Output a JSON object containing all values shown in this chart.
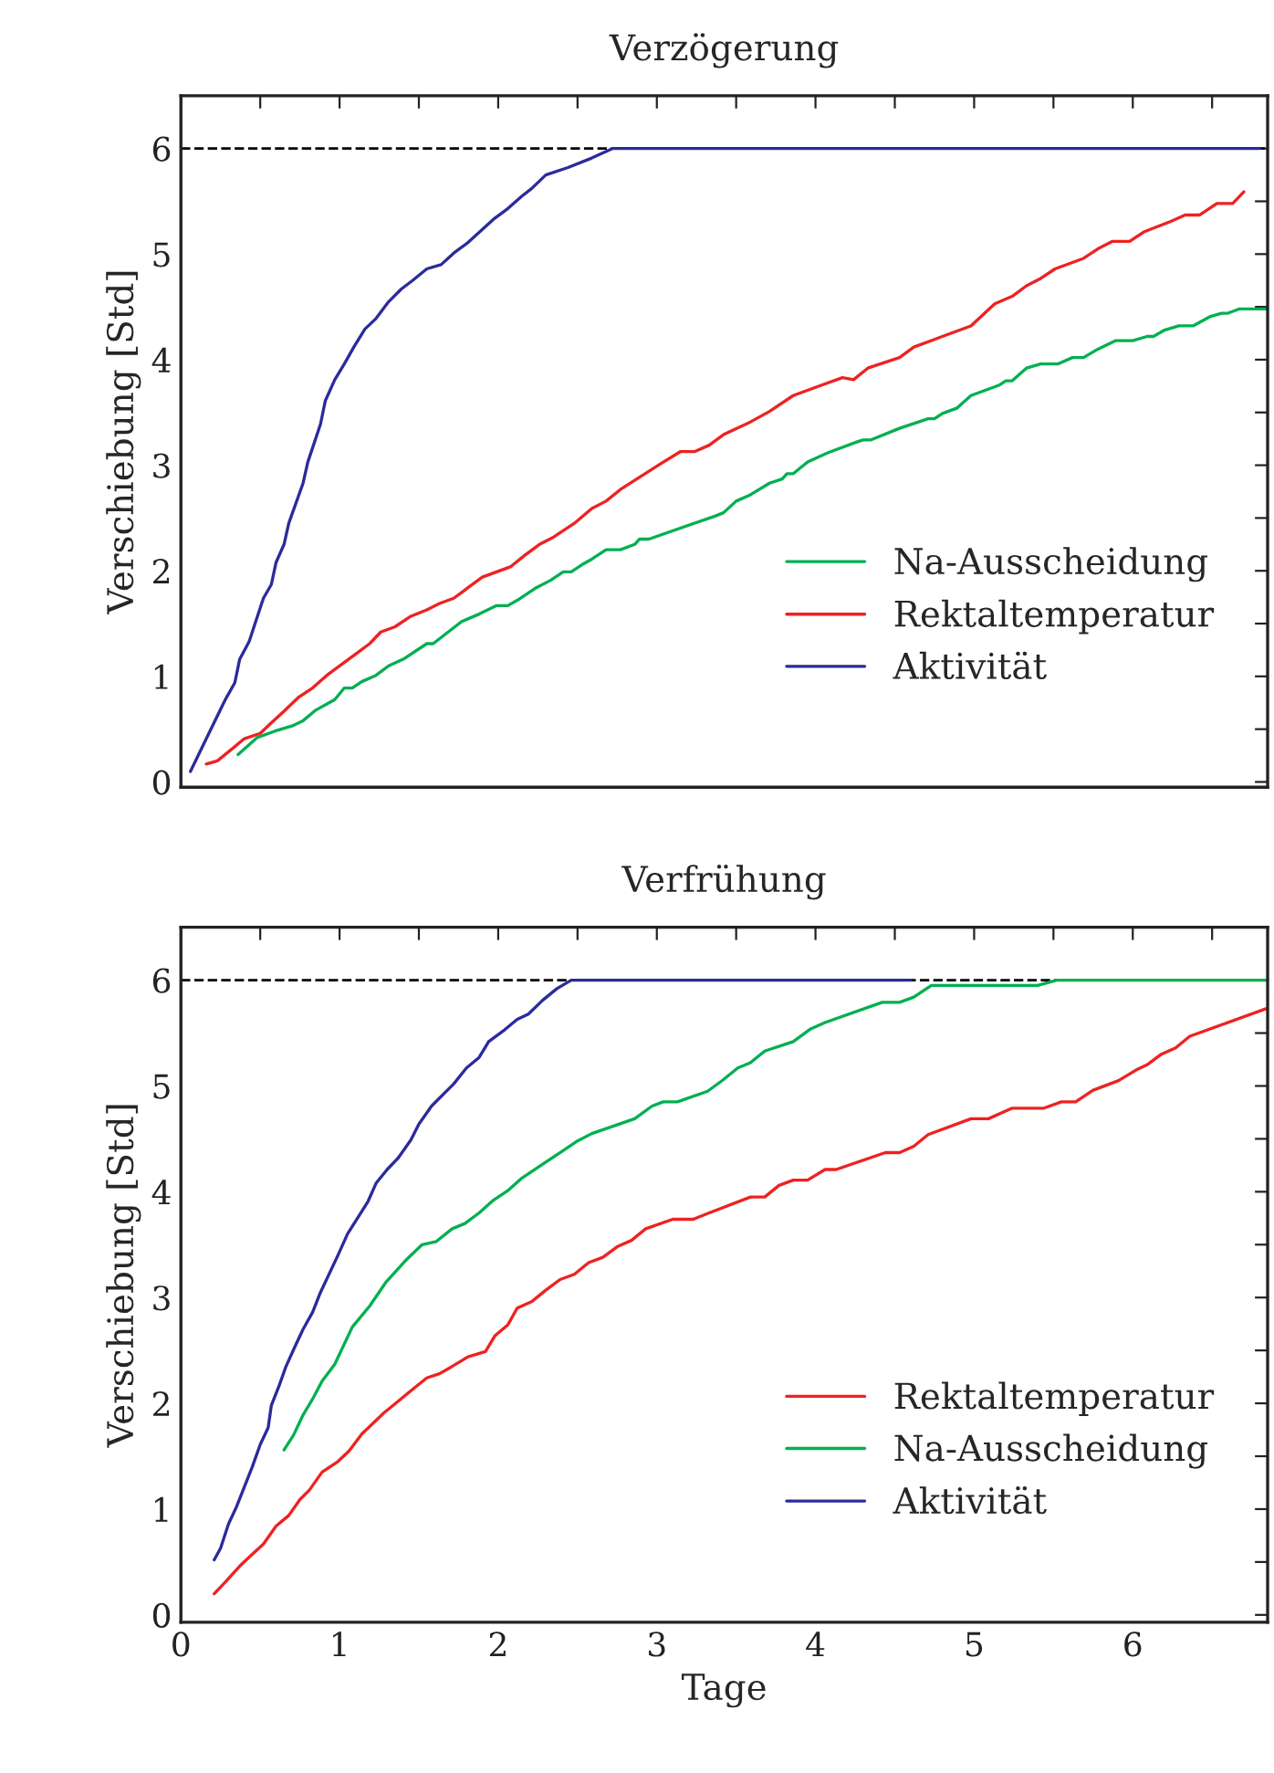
{
  "chart_data": [
    {
      "type": "line",
      "title": "Verzögerung",
      "ylabel": "Verschiebung [Std]",
      "xlim": [
        0,
        6.85
      ],
      "ylim": [
        -0.05,
        6.5
      ],
      "xticks": [
        {
          "value": 0,
          "label": null
        },
        {
          "value": 0.5,
          "label": null
        },
        {
          "value": 1,
          "label": null
        },
        {
          "value": 1.5,
          "label": null
        },
        {
          "value": 2,
          "label": null
        },
        {
          "value": 2.5,
          "label": null
        },
        {
          "value": 3,
          "label": null
        },
        {
          "value": 3.5,
          "label": null
        },
        {
          "value": 4,
          "label": null
        },
        {
          "value": 4.5,
          "label": null
        },
        {
          "value": 5,
          "label": null
        },
        {
          "value": 5.5,
          "label": null
        },
        {
          "value": 6,
          "label": null
        },
        {
          "value": 6.5,
          "label": null
        }
      ],
      "yticks": [
        0,
        {
          "value": 0.5,
          "label": null
        },
        1,
        {
          "value": 1.5,
          "label": null
        },
        2,
        {
          "value": 2.5,
          "label": null
        },
        3,
        {
          "value": 3.5,
          "label": null
        },
        4,
        {
          "value": 4.5,
          "label": null
        },
        5,
        {
          "value": 5.5,
          "label": null
        },
        6
      ],
      "tick_labels": "y",
      "grid": false,
      "legend": "bottom right",
      "line_style": "solid",
      "marker": "none",
      "ref_lines": [
        {
          "axis": "y",
          "value": 6,
          "color": "#000000",
          "line_style": "dashed"
        }
      ],
      "series": [
        {
          "name": "Na-Ausscheidung",
          "color": "#00b050",
          "x": [
            0.36,
            0.48,
            0.59,
            0.7,
            0.77,
            0.85,
            0.97,
            1.03,
            1.08,
            1.14,
            1.23,
            1.31,
            1.41,
            1.55,
            1.59,
            1.77,
            1.88,
            1.99,
            2.06,
            2.12,
            2.24,
            2.33,
            2.41,
            2.46,
            2.53,
            2.59,
            2.68,
            2.77,
            2.86,
            2.89,
            2.95,
            3.37,
            3.42,
            3.5,
            3.59,
            3.71,
            3.79,
            3.82,
            3.86,
            3.95,
            4.08,
            4.26,
            4.3,
            4.35,
            4.53,
            4.71,
            4.75,
            4.8,
            4.89,
            4.98,
            5.16,
            5.2,
            5.24,
            5.33,
            5.42,
            5.53,
            5.62,
            5.69,
            5.78,
            5.89,
            6.0,
            6.09,
            6.13,
            6.2,
            6.29,
            6.38,
            6.49,
            6.56,
            6.6,
            6.67,
            6.85
          ],
          "values": [
            0.26,
            0.42,
            0.48,
            0.53,
            0.58,
            0.68,
            0.78,
            0.89,
            0.89,
            0.95,
            1.01,
            1.1,
            1.17,
            1.31,
            1.31,
            1.52,
            1.59,
            1.67,
            1.67,
            1.72,
            1.84,
            1.91,
            1.99,
            1.99,
            2.06,
            2.11,
            2.2,
            2.2,
            2.25,
            2.3,
            2.3,
            2.52,
            2.55,
            2.66,
            2.72,
            2.83,
            2.87,
            2.92,
            2.92,
            3.03,
            3.12,
            3.22,
            3.24,
            3.24,
            3.35,
            3.44,
            3.44,
            3.49,
            3.54,
            3.66,
            3.76,
            3.8,
            3.8,
            3.92,
            3.96,
            3.96,
            4.02,
            4.02,
            4.1,
            4.18,
            4.18,
            4.22,
            4.22,
            4.28,
            4.32,
            4.32,
            4.41,
            4.44,
            4.44,
            4.48,
            4.48
          ]
        },
        {
          "name": "Rektaltemperatur",
          "color": "#ee2222",
          "x": [
            0.16,
            0.23,
            0.32,
            0.4,
            0.5,
            0.57,
            0.65,
            0.74,
            0.83,
            0.92,
            1.01,
            1.1,
            1.19,
            1.26,
            1.35,
            1.45,
            1.55,
            1.63,
            1.72,
            1.81,
            1.9,
            2.08,
            2.17,
            2.26,
            2.35,
            2.48,
            2.59,
            2.68,
            2.77,
            3.02,
            3.15,
            3.24,
            3.33,
            3.42,
            3.59,
            3.71,
            3.86,
            4.04,
            4.17,
            4.24,
            4.33,
            4.53,
            4.62,
            4.8,
            4.98,
            5.13,
            5.24,
            5.33,
            5.42,
            5.51,
            5.69,
            5.78,
            5.87,
            5.98,
            6.07,
            6.24,
            6.33,
            6.42,
            6.53,
            6.63,
            6.7
          ],
          "values": [
            0.17,
            0.2,
            0.31,
            0.41,
            0.46,
            0.56,
            0.67,
            0.8,
            0.89,
            1.01,
            1.11,
            1.21,
            1.31,
            1.42,
            1.47,
            1.57,
            1.63,
            1.69,
            1.74,
            1.84,
            1.94,
            2.04,
            2.15,
            2.25,
            2.32,
            2.45,
            2.59,
            2.66,
            2.77,
            3.01,
            3.13,
            3.13,
            3.19,
            3.29,
            3.41,
            3.51,
            3.66,
            3.76,
            3.83,
            3.81,
            3.92,
            4.02,
            4.12,
            4.22,
            4.32,
            4.53,
            4.6,
            4.7,
            4.77,
            4.86,
            4.96,
            5.05,
            5.12,
            5.12,
            5.21,
            5.31,
            5.37,
            5.37,
            5.48,
            5.48,
            5.59
          ]
        },
        {
          "name": "Aktivität",
          "color": "#2b2b9b",
          "x": [
            0.06,
            0.17,
            0.28,
            0.34,
            0.37,
            0.43,
            0.52,
            0.57,
            0.6,
            0.65,
            0.68,
            0.77,
            0.8,
            0.88,
            0.91,
            0.97,
            1.03,
            1.09,
            1.16,
            1.23,
            1.31,
            1.39,
            1.46,
            1.55,
            1.64,
            1.72,
            1.81,
            1.97,
            2.06,
            2.15,
            2.21,
            2.3,
            2.44,
            2.59,
            2.72,
            6.8
          ],
          "values": [
            0.1,
            0.44,
            0.78,
            0.94,
            1.16,
            1.33,
            1.74,
            1.87,
            2.08,
            2.25,
            2.45,
            2.83,
            3.03,
            3.39,
            3.61,
            3.81,
            3.96,
            4.12,
            4.29,
            4.39,
            4.55,
            4.67,
            4.75,
            4.86,
            4.9,
            5.01,
            5.11,
            5.33,
            5.43,
            5.55,
            5.62,
            5.75,
            5.82,
            5.91,
            6.0,
            6.0
          ]
        }
      ]
    },
    {
      "type": "line",
      "title": "Verfrühung",
      "ylabel": "Verschiebung [Std]",
      "xlabel": "Tage",
      "xlim": [
        0,
        6.85
      ],
      "ylim": [
        -0.07,
        6.5
      ],
      "xticks": [
        0,
        {
          "value": 0.5,
          "label": null
        },
        1,
        {
          "value": 1.5,
          "label": null
        },
        2,
        {
          "value": 2.5,
          "label": null
        },
        3,
        {
          "value": 3.5,
          "label": null
        },
        4,
        {
          "value": 4.5,
          "label": null
        },
        5,
        {
          "value": 5.5,
          "label": null
        },
        6,
        {
          "value": 6.5,
          "label": null
        }
      ],
      "yticks": [
        0,
        {
          "value": 0.5,
          "label": null
        },
        1,
        {
          "value": 1.5,
          "label": null
        },
        2,
        {
          "value": 2.5,
          "label": null
        },
        3,
        {
          "value": 3.5,
          "label": null
        },
        4,
        {
          "value": 4.5,
          "label": null
        },
        5,
        {
          "value": 5.5,
          "label": null
        },
        6
      ],
      "grid": false,
      "legend": "bottom right",
      "line_style": "solid",
      "marker": "none",
      "ref_lines": [
        {
          "axis": "y",
          "value": 6,
          "color": "#000000",
          "line_style": "dashed"
        }
      ],
      "series": [
        {
          "name": "Rektaltemperatur",
          "color": "#ee2222",
          "x": [
            0.21,
            0.28,
            0.37,
            0.44,
            0.52,
            0.6,
            0.68,
            0.75,
            0.81,
            0.89,
            0.99,
            1.06,
            1.14,
            1.28,
            1.37,
            1.45,
            1.55,
            1.63,
            1.7,
            1.81,
            1.92,
            1.98,
            2.06,
            2.12,
            2.21,
            2.3,
            2.39,
            2.48,
            2.57,
            2.66,
            2.75,
            2.84,
            2.93,
            3.1,
            3.23,
            3.33,
            3.59,
            3.68,
            3.77,
            3.86,
            3.95,
            4.06,
            4.13,
            4.44,
            4.53,
            4.62,
            4.71,
            4.98,
            5.09,
            5.24,
            5.44,
            5.55,
            5.64,
            5.75,
            5.91,
            6.02,
            6.09,
            6.18,
            6.27,
            6.36,
            6.84
          ],
          "values": [
            0.2,
            0.31,
            0.46,
            0.56,
            0.67,
            0.84,
            0.94,
            1.09,
            1.18,
            1.35,
            1.45,
            1.55,
            1.71,
            1.91,
            2.02,
            2.12,
            2.24,
            2.28,
            2.34,
            2.44,
            2.49,
            2.64,
            2.74,
            2.9,
            2.96,
            3.07,
            3.17,
            3.22,
            3.33,
            3.38,
            3.48,
            3.54,
            3.65,
            3.74,
            3.74,
            3.8,
            3.95,
            3.95,
            4.06,
            4.11,
            4.11,
            4.21,
            4.21,
            4.37,
            4.37,
            4.43,
            4.54,
            4.69,
            4.69,
            4.79,
            4.79,
            4.85,
            4.85,
            4.96,
            5.05,
            5.15,
            5.2,
            5.3,
            5.36,
            5.47,
            5.73
          ]
        },
        {
          "name": "Na-Ausscheidung",
          "color": "#00b050",
          "x": [
            0.65,
            0.71,
            0.77,
            0.83,
            0.89,
            0.97,
            1.08,
            1.19,
            1.29,
            1.41,
            1.52,
            1.61,
            1.71,
            1.79,
            1.88,
            1.97,
            2.06,
            2.15,
            2.24,
            2.3,
            2.4,
            2.5,
            2.59,
            2.86,
            2.97,
            3.04,
            3.13,
            3.32,
            3.42,
            3.51,
            3.59,
            3.68,
            3.86,
            3.97,
            4.06,
            4.42,
            4.53,
            4.62,
            4.73,
            5.4,
            5.52,
            6.85
          ],
          "values": [
            1.56,
            1.7,
            1.89,
            2.04,
            2.21,
            2.37,
            2.72,
            2.92,
            3.14,
            3.34,
            3.5,
            3.53,
            3.65,
            3.7,
            3.8,
            3.92,
            4.01,
            4.13,
            4.22,
            4.28,
            4.38,
            4.48,
            4.55,
            4.69,
            4.81,
            4.85,
            4.85,
            4.95,
            5.06,
            5.17,
            5.22,
            5.33,
            5.42,
            5.54,
            5.6,
            5.79,
            5.79,
            5.84,
            5.95,
            5.95,
            6.0,
            6.0
          ]
        },
        {
          "name": "Aktivität",
          "color": "#2b2b9b",
          "x": [
            0.21,
            0.25,
            0.3,
            0.35,
            0.4,
            0.45,
            0.5,
            0.55,
            0.57,
            0.62,
            0.66,
            0.72,
            0.77,
            0.83,
            0.88,
            0.99,
            1.05,
            1.18,
            1.23,
            1.3,
            1.37,
            1.45,
            1.5,
            1.58,
            1.72,
            1.8,
            1.88,
            1.94,
            2.04,
            2.12,
            2.19,
            2.28,
            2.37,
            2.46,
            4.6
          ],
          "values": [
            0.52,
            0.63,
            0.86,
            1.02,
            1.21,
            1.4,
            1.61,
            1.77,
            1.98,
            2.17,
            2.34,
            2.54,
            2.7,
            2.86,
            3.05,
            3.4,
            3.6,
            3.91,
            4.08,
            4.21,
            4.32,
            4.49,
            4.64,
            4.81,
            5.02,
            5.17,
            5.27,
            5.42,
            5.53,
            5.63,
            5.68,
            5.81,
            5.92,
            6.0,
            6.0
          ]
        }
      ]
    }
  ]
}
